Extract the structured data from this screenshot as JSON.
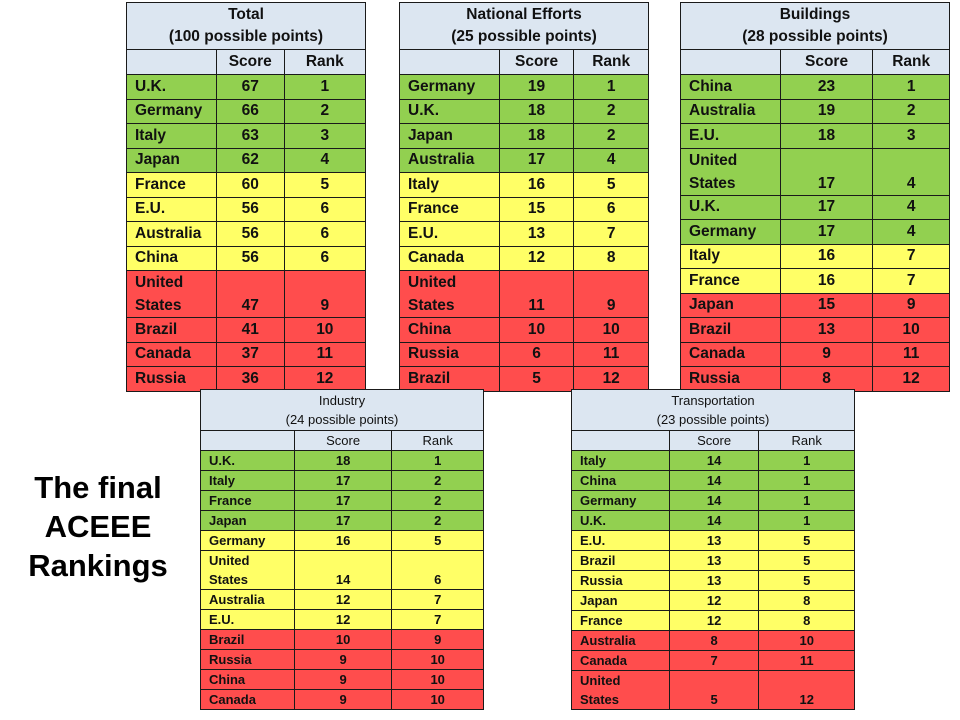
{
  "slide_title": {
    "lines": [
      "The final",
      "ACEEE",
      "Rankings"
    ]
  },
  "colors": {
    "header": "#dce6f1",
    "green": "#92d050",
    "yellow": "#ffff66",
    "red": "#ff4d4d"
  },
  "tables": {
    "total": {
      "title": "Total",
      "subtitle": "(100 possible points)",
      "col_score": "Score",
      "col_rank": "Rank",
      "rows": [
        {
          "country": "U.K.",
          "score": "67",
          "rank": "1",
          "tier": "green"
        },
        {
          "country": "Germany",
          "score": "66",
          "rank": "2",
          "tier": "green"
        },
        {
          "country": "Italy",
          "score": "63",
          "rank": "3",
          "tier": "green"
        },
        {
          "country": "Japan",
          "score": "62",
          "rank": "4",
          "tier": "green"
        },
        {
          "country": "France",
          "score": "60",
          "rank": "5",
          "tier": "yellow"
        },
        {
          "country": "E.U.",
          "score": "56",
          "rank": "6",
          "tier": "yellow"
        },
        {
          "country": "Australia",
          "score": "56",
          "rank": "6",
          "tier": "yellow"
        },
        {
          "country": "China",
          "score": "56",
          "rank": "6",
          "tier": "yellow"
        },
        {
          "country": "United States",
          "score": "47",
          "rank": "9",
          "tier": "red"
        },
        {
          "country": "Brazil",
          "score": "41",
          "rank": "10",
          "tier": "red"
        },
        {
          "country": "Canada",
          "score": "37",
          "rank": "11",
          "tier": "red"
        },
        {
          "country": "Russia",
          "score": "36",
          "rank": "12",
          "tier": "red"
        }
      ]
    },
    "national": {
      "title": "National Efforts",
      "subtitle": "(25 possible points)",
      "col_score": "Score",
      "col_rank": "Rank",
      "rows": [
        {
          "country": "Germany",
          "score": "19",
          "rank": "1",
          "tier": "green"
        },
        {
          "country": "U.K.",
          "score": "18",
          "rank": "2",
          "tier": "green"
        },
        {
          "country": "Japan",
          "score": "18",
          "rank": "2",
          "tier": "green"
        },
        {
          "country": "Australia",
          "score": "17",
          "rank": "4",
          "tier": "green"
        },
        {
          "country": "Italy",
          "score": "16",
          "rank": "5",
          "tier": "yellow"
        },
        {
          "country": "France",
          "score": "15",
          "rank": "6",
          "tier": "yellow"
        },
        {
          "country": "E.U.",
          "score": "13",
          "rank": "7",
          "tier": "yellow"
        },
        {
          "country": "Canada",
          "score": "12",
          "rank": "8",
          "tier": "yellow"
        },
        {
          "country": "United States",
          "score": "11",
          "rank": "9",
          "tier": "red"
        },
        {
          "country": "China",
          "score": "10",
          "rank": "10",
          "tier": "red"
        },
        {
          "country": "Russia",
          "score": "6",
          "rank": "11",
          "tier": "red"
        },
        {
          "country": "Brazil",
          "score": "5",
          "rank": "12",
          "tier": "red"
        }
      ]
    },
    "buildings": {
      "title": "Buildings",
      "subtitle": "(28 possible points)",
      "col_score": "Score",
      "col_rank": "Rank",
      "rows": [
        {
          "country": "China",
          "score": "23",
          "rank": "1",
          "tier": "green"
        },
        {
          "country": "Australia",
          "score": "19",
          "rank": "2",
          "tier": "green"
        },
        {
          "country": "E.U.",
          "score": "18",
          "rank": "3",
          "tier": "green"
        },
        {
          "country": "United States",
          "score": "17",
          "rank": "4",
          "tier": "green"
        },
        {
          "country": "U.K.",
          "score": "17",
          "rank": "4",
          "tier": "green"
        },
        {
          "country": "Germany",
          "score": "17",
          "rank": "4",
          "tier": "green"
        },
        {
          "country": "Italy",
          "score": "16",
          "rank": "7",
          "tier": "yellow"
        },
        {
          "country": "France",
          "score": "16",
          "rank": "7",
          "tier": "yellow"
        },
        {
          "country": "Japan",
          "score": "15",
          "rank": "9",
          "tier": "red"
        },
        {
          "country": "Brazil",
          "score": "13",
          "rank": "10",
          "tier": "red"
        },
        {
          "country": "Canada",
          "score": "9",
          "rank": "11",
          "tier": "red"
        },
        {
          "country": "Russia",
          "score": "8",
          "rank": "12",
          "tier": "red"
        }
      ]
    },
    "industry": {
      "title": "Industry",
      "subtitle": "(24 possible points)",
      "col_score": "Score",
      "col_rank": "Rank",
      "rows": [
        {
          "country": "U.K.",
          "score": "18",
          "rank": "1",
          "tier": "green"
        },
        {
          "country": "Italy",
          "score": "17",
          "rank": "2",
          "tier": "green"
        },
        {
          "country": "France",
          "score": "17",
          "rank": "2",
          "tier": "green"
        },
        {
          "country": "Japan",
          "score": "17",
          "rank": "2",
          "tier": "green"
        },
        {
          "country": "Germany",
          "score": "16",
          "rank": "5",
          "tier": "yellow"
        },
        {
          "country": "United States",
          "score": "14",
          "rank": "6",
          "tier": "yellow"
        },
        {
          "country": "Australia",
          "score": "12",
          "rank": "7",
          "tier": "yellow"
        },
        {
          "country": "E.U.",
          "score": "12",
          "rank": "7",
          "tier": "yellow"
        },
        {
          "country": "Brazil",
          "score": "10",
          "rank": "9",
          "tier": "red"
        },
        {
          "country": "Russia",
          "score": "9",
          "rank": "10",
          "tier": "red"
        },
        {
          "country": "China",
          "score": "9",
          "rank": "10",
          "tier": "red"
        },
        {
          "country": "Canada",
          "score": "9",
          "rank": "10",
          "tier": "red"
        }
      ]
    },
    "transportation": {
      "title": "Transportation",
      "subtitle": "(23 possible points)",
      "col_score": "Score",
      "col_rank": "Rank",
      "rows": [
        {
          "country": "Italy",
          "score": "14",
          "rank": "1",
          "tier": "green"
        },
        {
          "country": "China",
          "score": "14",
          "rank": "1",
          "tier": "green"
        },
        {
          "country": "Germany",
          "score": "14",
          "rank": "1",
          "tier": "green"
        },
        {
          "country": "U.K.",
          "score": "14",
          "rank": "1",
          "tier": "green"
        },
        {
          "country": "E.U.",
          "score": "13",
          "rank": "5",
          "tier": "yellow"
        },
        {
          "country": "Brazil",
          "score": "13",
          "rank": "5",
          "tier": "yellow"
        },
        {
          "country": "Russia",
          "score": "13",
          "rank": "5",
          "tier": "yellow"
        },
        {
          "country": "Japan",
          "score": "12",
          "rank": "8",
          "tier": "yellow"
        },
        {
          "country": "France",
          "score": "12",
          "rank": "8",
          "tier": "yellow"
        },
        {
          "country": "Australia",
          "score": "8",
          "rank": "10",
          "tier": "red"
        },
        {
          "country": "Canada",
          "score": "7",
          "rank": "11",
          "tier": "red"
        },
        {
          "country": "United States",
          "score": "5",
          "rank": "12",
          "tier": "red"
        }
      ]
    }
  }
}
